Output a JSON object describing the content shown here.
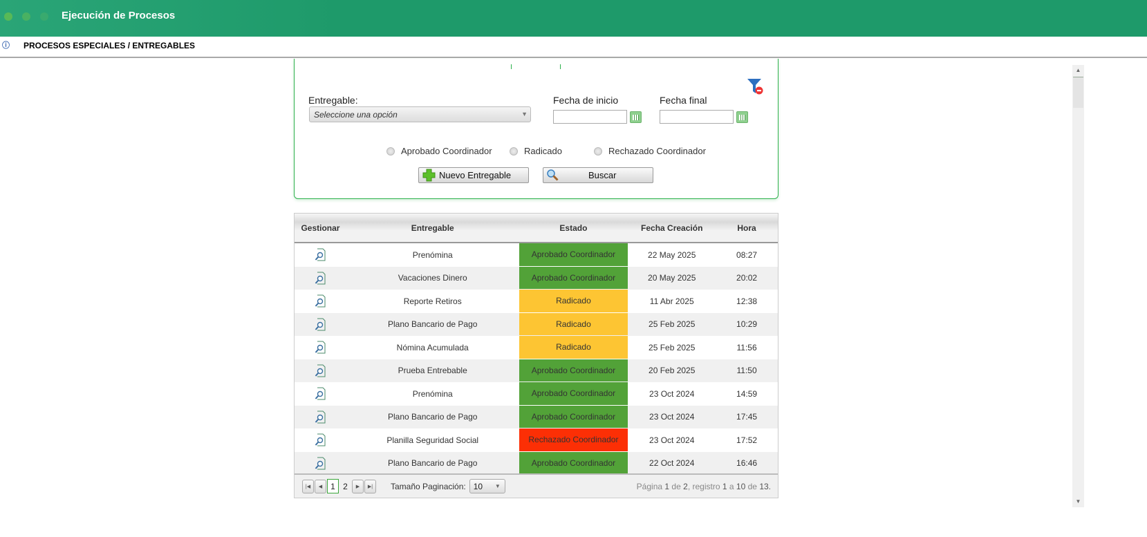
{
  "app": {
    "title": "Ejecución de Procesos"
  },
  "breadcrumb": "PROCESOS ESPECIALES / ENTREGABLES",
  "filters": {
    "entregable_label": "Entregable:",
    "entregable_placeholder": "Seleccione una opción",
    "fecha_inicio_label": "Fecha de inicio",
    "fecha_final_label": "Fecha final",
    "fecha_inicio_value": "",
    "fecha_final_value": "",
    "radios": [
      "Aprobado Coordinador",
      "Radicado",
      "Rechazado Coordinador"
    ],
    "nuevo_label": "Nuevo Entregable",
    "buscar_label": "Buscar"
  },
  "colors": {
    "aprobado": "#52a238",
    "radicado": "#fdc533",
    "rechazado": "#fc2f05",
    "header": "#1e9a6a"
  },
  "table": {
    "columns": [
      "Gestionar",
      "Entregable",
      "Estado",
      "Fecha Creación",
      "Hora"
    ],
    "rows": [
      {
        "entregable": "Prenómina",
        "estado": "Aprobado Coordinador",
        "fecha": "22 May 2025",
        "hora": "08:27",
        "status": "aprobado"
      },
      {
        "entregable": "Vacaciones Dinero",
        "estado": "Aprobado Coordinador",
        "fecha": "20 May 2025",
        "hora": "20:02",
        "status": "aprobado"
      },
      {
        "entregable": "Reporte Retiros",
        "estado": "Radicado",
        "fecha": "11 Abr 2025",
        "hora": "12:38",
        "status": "radicado"
      },
      {
        "entregable": "Plano Bancario de Pago",
        "estado": "Radicado",
        "fecha": "25 Feb 2025",
        "hora": "10:29",
        "status": "radicado"
      },
      {
        "entregable": "Nómina Acumulada",
        "estado": "Radicado",
        "fecha": "25 Feb 2025",
        "hora": "11:56",
        "status": "radicado"
      },
      {
        "entregable": "Prueba Entrebable",
        "estado": "Aprobado Coordinador",
        "fecha": "20 Feb 2025",
        "hora": "11:50",
        "status": "aprobado"
      },
      {
        "entregable": "Prenómina",
        "estado": "Aprobado Coordinador",
        "fecha": "23 Oct 2024",
        "hora": "14:59",
        "status": "aprobado"
      },
      {
        "entregable": "Plano Bancario de Pago",
        "estado": "Aprobado Coordinador",
        "fecha": "23 Oct 2024",
        "hora": "17:45",
        "status": "aprobado"
      },
      {
        "entregable": "Planilla Seguridad Social",
        "estado": "Rechazado Coordinador",
        "fecha": "23 Oct 2024",
        "hora": "17:52",
        "status": "rechazado"
      },
      {
        "entregable": "Plano Bancario de Pago",
        "estado": "Aprobado Coordinador",
        "fecha": "22 Oct 2024",
        "hora": "16:46",
        "status": "aprobado"
      }
    ]
  },
  "pager": {
    "pages": [
      "1",
      "2"
    ],
    "current": "1",
    "size_label": "Tamaño Paginación:",
    "size_value": "10",
    "info_pagina": "Página",
    "info_page": "1",
    "info_de": "de",
    "info_total_pages": "2",
    "info_registro": ", registro",
    "info_from": "1",
    "info_a": "a",
    "info_to": "10",
    "info_de2": "de",
    "info_total": "13."
  }
}
